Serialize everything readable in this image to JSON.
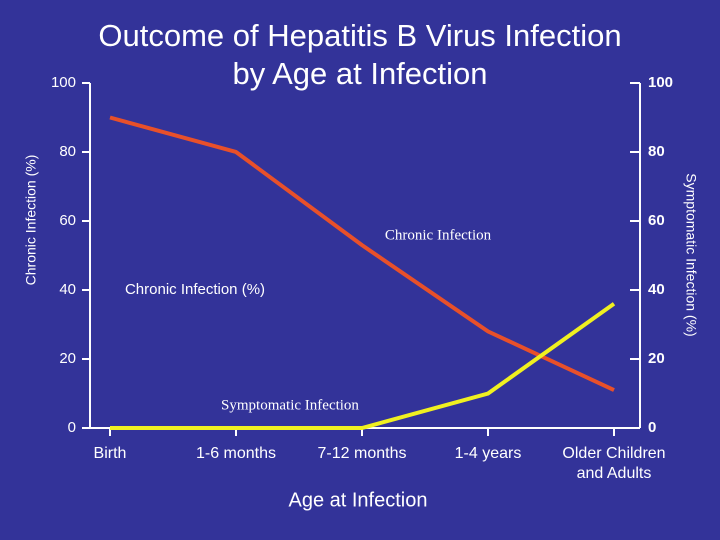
{
  "chart_data": {
    "type": "line",
    "title": "Outcome of Hepatitis B Virus Infection",
    "subtitle": "by Age at Infection",
    "x_label": "Age at Infection",
    "y_label": "Chronic Infection (%)",
    "y2_label": "Symptomatic Infection (%)",
    "categories": [
      "Birth",
      "1-6 months",
      "7-12 months",
      "1-4 years",
      "Older Children and Adults"
    ],
    "series": [
      {
        "name": "Chronic Infection",
        "color": "#e8502a",
        "values": [
          90,
          80,
          53,
          28,
          11
        ]
      },
      {
        "name": "Symptomatic Infection",
        "color": "#f0f020",
        "axis": "y2",
        "values": [
          0,
          0,
          0,
          10,
          36
        ]
      }
    ],
    "annotations": [
      "Chronic Infection (%)"
    ],
    "ylim": [
      0,
      100
    ],
    "yticks": [
      0,
      20,
      40,
      60,
      80,
      100
    ],
    "y2lim": [
      0,
      100
    ],
    "y2ticks": [
      0,
      20,
      40,
      60,
      80,
      100
    ]
  }
}
